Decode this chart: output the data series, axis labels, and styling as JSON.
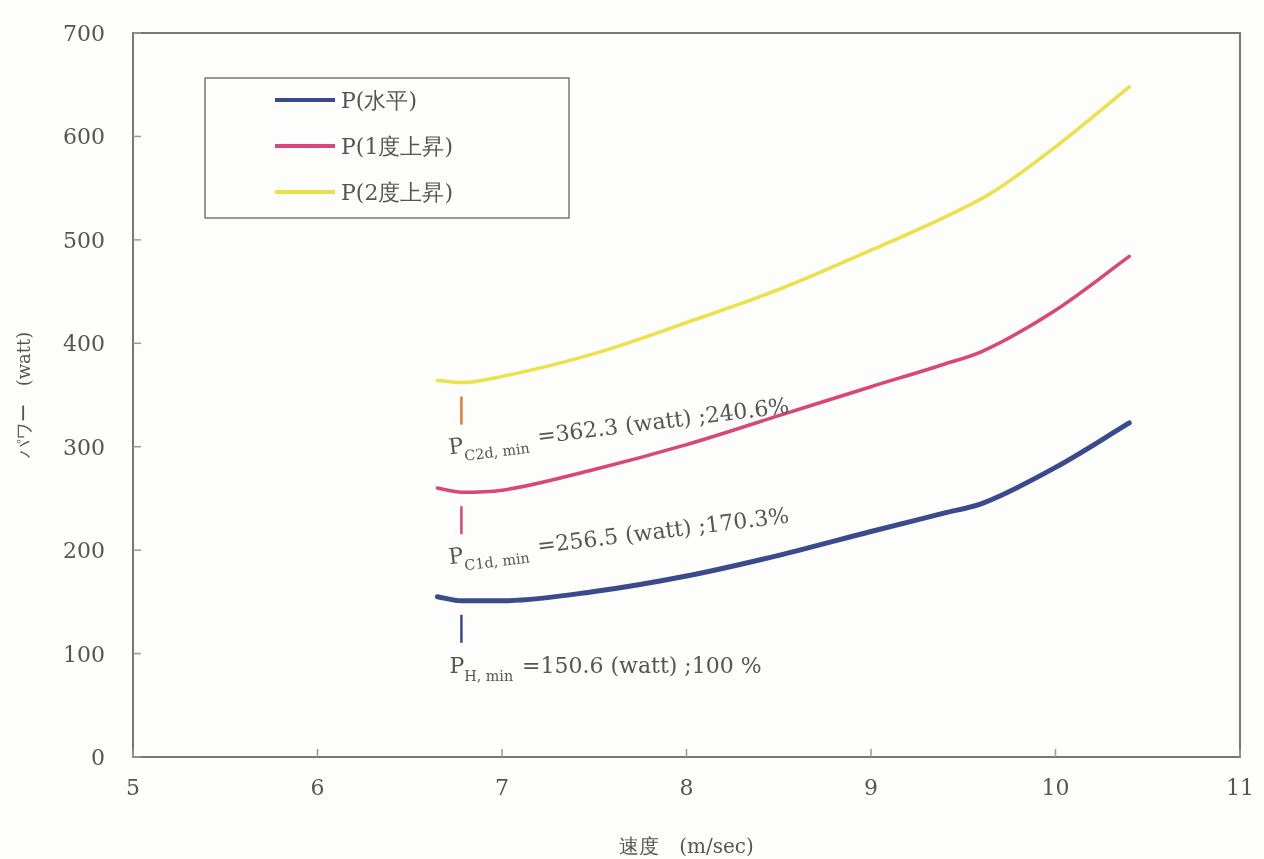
{
  "chart_data": {
    "type": "line",
    "xlabel": "速度　(m/sec)",
    "ylabel": "パワー　(watt)",
    "xlim": [
      5,
      11
    ],
    "xticks": [
      5,
      6,
      7,
      8,
      9,
      10,
      11
    ],
    "ylim": [
      0,
      700
    ],
    "yticks": [
      0,
      100,
      200,
      300,
      400,
      500,
      600,
      700
    ],
    "grid": false,
    "legend": "top left",
    "marker": "none",
    "line_style": "solid",
    "series": [
      {
        "name": "P(水平)",
        "color": "#3b4a8c",
        "x": [
          6.65,
          6.78,
          7.0,
          7.5,
          8.0,
          8.5,
          9.0,
          9.4,
          9.6,
          10.0,
          10.4
        ],
        "values": [
          155,
          151,
          151,
          160,
          175,
          195,
          218,
          236,
          245,
          280,
          323
        ]
      },
      {
        "name": "P(1度上昇)",
        "color": "#d9467a",
        "x": [
          6.65,
          6.78,
          7.0,
          7.5,
          8.0,
          8.5,
          9.0,
          9.4,
          9.6,
          10.0,
          10.4
        ],
        "values": [
          260,
          256,
          258,
          278,
          302,
          330,
          358,
          380,
          392,
          432,
          484
        ]
      },
      {
        "name": "P(2度上昇)",
        "color": "#ece14a",
        "x": [
          6.65,
          6.78,
          7.0,
          7.5,
          8.0,
          8.5,
          9.0,
          9.4,
          9.65,
          10.0,
          10.4
        ],
        "values": [
          364,
          362,
          368,
          390,
          420,
          452,
          490,
          522,
          545,
          590,
          648
        ]
      }
    ],
    "annotations": [
      "P$_{H, min}$ =150.6 (watt) ;100 %",
      "P$_{C1d, min}$ =256.5 (watt) ;170.3%",
      "P$_{C2d, min}$ =362.3 (watt) ;240.6%"
    ]
  }
}
